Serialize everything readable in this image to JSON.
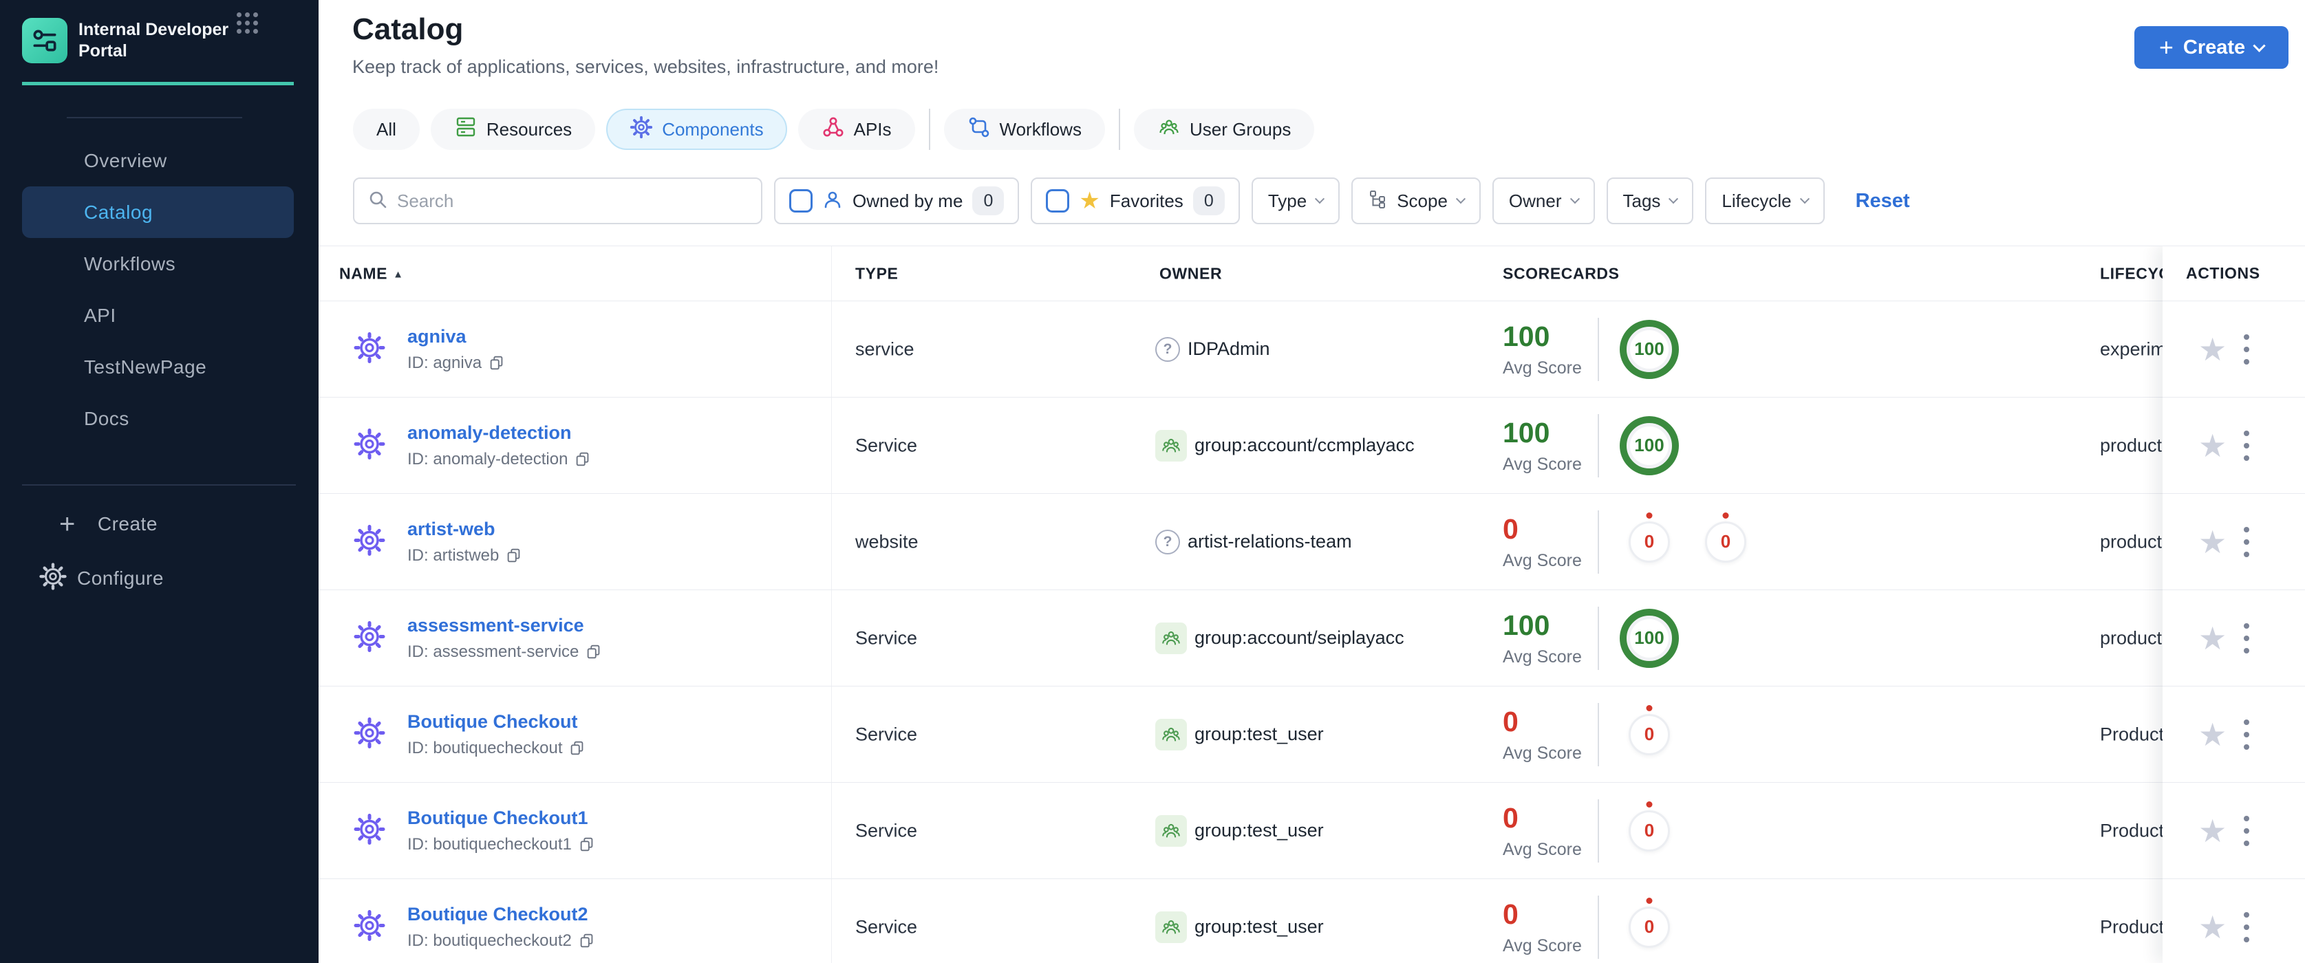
{
  "sidebar": {
    "brand": {
      "title": "Internal Developer Portal"
    },
    "items": [
      {
        "label": "Overview",
        "active": false
      },
      {
        "label": "Catalog",
        "active": true
      },
      {
        "label": "Workflows",
        "active": false
      },
      {
        "label": "API",
        "active": false
      },
      {
        "label": "TestNewPage",
        "active": false
      },
      {
        "label": "Docs",
        "active": false
      }
    ],
    "footer": {
      "create_label": "Create",
      "configure_label": "Configure"
    }
  },
  "header": {
    "title": "Catalog",
    "subtitle": "Keep track of applications, services, websites, infrastructure, and more!",
    "create_label": "Create"
  },
  "tabs": [
    {
      "label": "All",
      "icon": "none",
      "active": false
    },
    {
      "label": "Resources",
      "icon": "resources-icon",
      "active": false
    },
    {
      "label": "Components",
      "icon": "components-gear-icon",
      "active": true
    },
    {
      "label": "APIs",
      "icon": "apis-icon",
      "active": false
    },
    {
      "label": "Workflows",
      "icon": "workflows-icon",
      "active": false
    },
    {
      "label": "User Groups",
      "icon": "user-groups-icon",
      "active": false
    }
  ],
  "filters": {
    "search_placeholder": "Search",
    "search_value": "",
    "owned_by_me": {
      "label": "Owned by me",
      "count": 0,
      "checked": false
    },
    "favorites": {
      "label": "Favorites",
      "count": 0,
      "checked": false
    },
    "dropdowns": [
      "Type",
      "Scope",
      "Owner",
      "Tags",
      "Lifecycle"
    ],
    "reset_label": "Reset"
  },
  "table": {
    "columns": [
      "NAME",
      "TYPE",
      "OWNER",
      "SCORECARDS",
      "LIFECYCLE",
      "ACTIONS"
    ],
    "sort_ascending_icon": "▲",
    "avg_score_label": "Avg Score",
    "rows": [
      {
        "name": "agniva",
        "id": "ID: agniva",
        "type": "service",
        "owner": "IDPAdmin",
        "owner_icon": "question",
        "avg_score": "100",
        "score_color": "green",
        "badges": [
          "100"
        ],
        "lifecycle": "experimental"
      },
      {
        "name": "anomaly-detection",
        "id": "ID: anomaly-detection",
        "type": "Service",
        "owner": "group:account/ccmplayacc",
        "owner_icon": "group",
        "avg_score": "100",
        "score_color": "green",
        "badges": [
          "100"
        ],
        "lifecycle": "production"
      },
      {
        "name": "artist-web",
        "id": "ID: artistweb",
        "type": "website",
        "owner": "artist-relations-team",
        "owner_icon": "question",
        "avg_score": "0",
        "score_color": "red",
        "badges": [
          "0",
          "0"
        ],
        "lifecycle": "production"
      },
      {
        "name": "assessment-service",
        "id": "ID: assessment-service",
        "type": "Service",
        "owner": "group:account/seiplayacc",
        "owner_icon": "group",
        "avg_score": "100",
        "score_color": "green",
        "badges": [
          "100"
        ],
        "lifecycle": "production"
      },
      {
        "name": "Boutique Checkout",
        "id": "ID: boutiquecheckout",
        "type": "Service",
        "owner": "group:test_user",
        "owner_icon": "group",
        "avg_score": "0",
        "score_color": "red",
        "badges": [
          "0"
        ],
        "lifecycle": "Production"
      },
      {
        "name": "Boutique Checkout1",
        "id": "ID: boutiquecheckout1",
        "type": "Service",
        "owner": "group:test_user",
        "owner_icon": "group",
        "avg_score": "0",
        "score_color": "red",
        "badges": [
          "0"
        ],
        "lifecycle": "Production"
      },
      {
        "name": "Boutique Checkout2",
        "id": "ID: boutiquecheckout2",
        "type": "Service",
        "owner": "group:test_user",
        "owner_icon": "group",
        "avg_score": "0",
        "score_color": "red",
        "badges": [
          "0"
        ],
        "lifecycle": "Production"
      }
    ]
  },
  "colors": {
    "sidebar_bg": "#0f1a2b",
    "accent_teal": "#43c7ad",
    "active_item_text": "#4db5f0",
    "primary_blue": "#3273d8",
    "link_blue": "#3170d8",
    "entity_icon_purple": "#6e5df0",
    "score_green": "#2e7d32",
    "score_red": "#d4372a",
    "tab_active_bg": "#e7f5fd"
  }
}
